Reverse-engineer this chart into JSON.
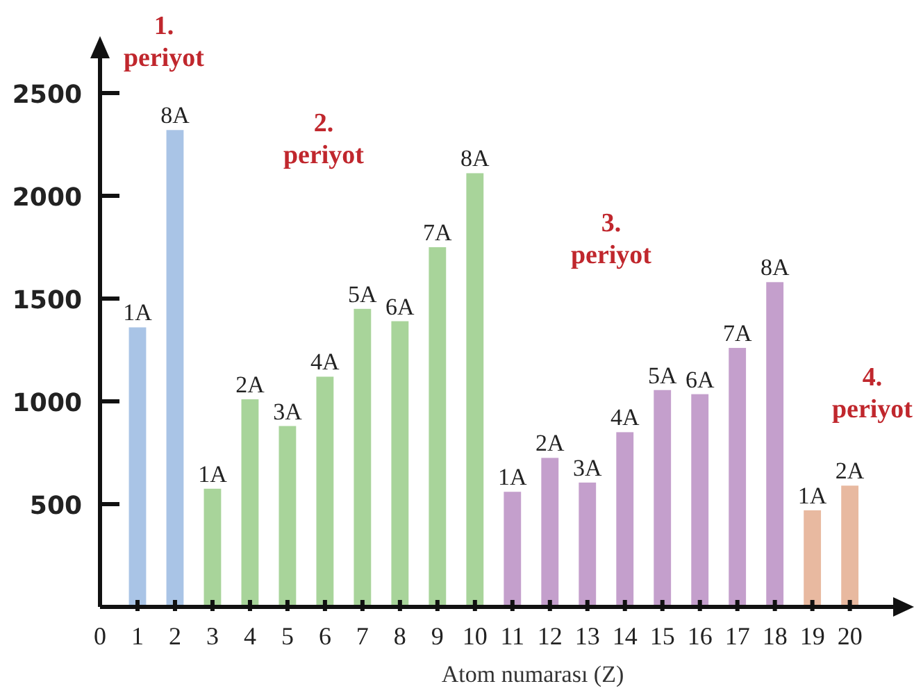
{
  "chart_data": {
    "type": "bar",
    "xlabel": "Atom numarası (Z)",
    "x": [
      1,
      2,
      3,
      4,
      5,
      6,
      7,
      8,
      9,
      10,
      11,
      12,
      13,
      14,
      15,
      16,
      17,
      18,
      19,
      20
    ],
    "values": [
      1360,
      2320,
      575,
      1010,
      880,
      1120,
      1450,
      1390,
      1750,
      2110,
      560,
      725,
      605,
      850,
      1055,
      1035,
      1260,
      1580,
      470,
      590
    ],
    "colors": [
      "#a9c4e6",
      "#a9c4e6",
      "#a8d49a",
      "#a8d49a",
      "#a8d49a",
      "#a8d49a",
      "#a8d49a",
      "#a8d49a",
      "#a8d49a",
      "#a8d49a",
      "#c49fcc",
      "#c49fcc",
      "#c49fcc",
      "#c49fcc",
      "#c49fcc",
      "#c49fcc",
      "#c49fcc",
      "#c49fcc",
      "#e8b9a0",
      "#e8b9a0"
    ],
    "xlim": [
      0,
      21.6
    ],
    "ylim": [
      0,
      2750
    ],
    "xticks": [
      0,
      1,
      2,
      3,
      4,
      5,
      6,
      7,
      8,
      9,
      10,
      11,
      12,
      13,
      14,
      15,
      16,
      17,
      18,
      19,
      20
    ],
    "yticks": [
      500,
      1000,
      1500,
      2000,
      2500
    ],
    "annotations": [
      "1.\nperiyot",
      "2.\nperiyot",
      "3.\nperiyot",
      "4.\nperiyot",
      {
        "text": "1A",
        "x": 1,
        "y": 1360
      },
      {
        "text": "8A",
        "x": 2,
        "y": 2320
      },
      {
        "text": "1A",
        "x": 3,
        "y": 575
      },
      {
        "text": "2A",
        "x": 4,
        "y": 1010
      },
      {
        "text": "3A",
        "x": 5,
        "y": 880
      },
      {
        "text": "4A",
        "x": 6,
        "y": 1120
      },
      {
        "text": "5A",
        "x": 7,
        "y": 1450
      },
      {
        "text": "6A",
        "x": 8,
        "y": 1390
      },
      {
        "text": "7A",
        "x": 9,
        "y": 1750
      },
      {
        "text": "8A",
        "x": 10,
        "y": 2110
      },
      {
        "text": "1A",
        "x": 11,
        "y": 560
      },
      {
        "text": "2A",
        "x": 12,
        "y": 725
      },
      {
        "text": "3A",
        "x": 13,
        "y": 605
      },
      {
        "text": "4A",
        "x": 14,
        "y": 850
      },
      {
        "text": "5A",
        "x": 15,
        "y": 1055
      },
      {
        "text": "6A",
        "x": 16,
        "y": 1035
      },
      {
        "text": "7A",
        "x": 17,
        "y": 1260
      },
      {
        "text": "8A",
        "x": 18,
        "y": 1580
      },
      {
        "text": "1A",
        "x": 19,
        "y": 470
      },
      {
        "text": "2A",
        "x": 20,
        "y": 590
      }
    ]
  }
}
